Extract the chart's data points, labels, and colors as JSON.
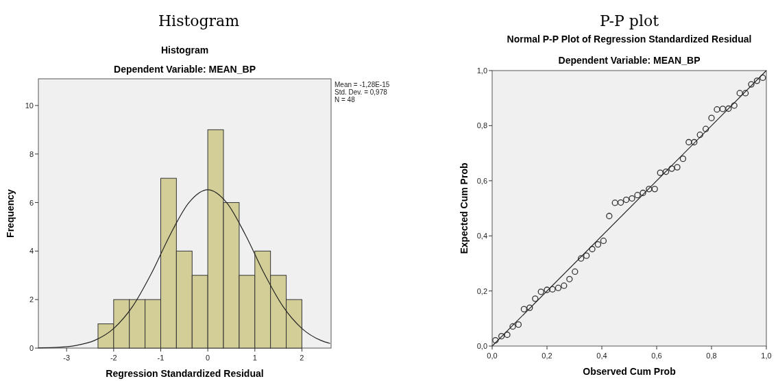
{
  "chart_data": [
    {
      "type": "histogram",
      "title": "Histogram",
      "subtitle": "Dependent Variable: MEAN_BP",
      "xlabel": "Regression Standardized Residual",
      "ylabel": "Frequency",
      "annotations": [
        "Histogram",
        "Mean = -1,28E-15",
        "Std. Dev. = 0,978",
        "N = 48"
      ],
      "bins": [
        -2.333,
        -2,
        -1.667,
        -1.333,
        -1,
        -0.667,
        -0.333,
        0,
        0.333,
        0.667,
        1,
        1.333,
        1.667,
        2
      ],
      "values": [
        1,
        2,
        2,
        2,
        7,
        4,
        3,
        9,
        6,
        3,
        4,
        3,
        2
      ],
      "color": "#d3ce97",
      "series": [
        {
          "type": "line",
          "color": "#222222",
          "x": [
            -3.6,
            -3.2,
            -2.8,
            -2.4,
            -2,
            -1.6,
            -1.2,
            -0.8,
            -0.4,
            0,
            0.4,
            0.8,
            1.2,
            1.6,
            2,
            2.4,
            2.6
          ],
          "values": [
            0.01,
            0.03,
            0.11,
            0.32,
            0.81,
            1.71,
            3.07,
            4.67,
            6,
            6.53,
            6,
            4.67,
            3.07,
            1.71,
            0.81,
            0.32,
            0.19
          ]
        }
      ],
      "xlim": [
        -3.6,
        2.62
      ],
      "ylim": [
        0,
        11.1
      ],
      "xticks": [
        -3,
        -2,
        -1,
        0,
        1,
        2
      ],
      "yticks": [
        0,
        2,
        4,
        6,
        8,
        10
      ],
      "grid": false
    },
    {
      "type": "scatter",
      "title": "Normal P-P Plot of Regression Standardized Residual",
      "subtitle": "Dependent Variable: MEAN_BP",
      "xlabel": "Observed Cum Prob",
      "ylabel": "Expected Cum Prob",
      "annotations": [
        "P-P plot"
      ],
      "marker": "circle",
      "grid": false,
      "series": [
        {
          "type": "scatter",
          "color": "#333333",
          "x": [
            0.012,
            0.034,
            0.055,
            0.075,
            0.096,
            0.116,
            0.137,
            0.157,
            0.178,
            0.2,
            0.22,
            0.241,
            0.262,
            0.282,
            0.302,
            0.324,
            0.344,
            0.365,
            0.386,
            0.406,
            0.427,
            0.448,
            0.469,
            0.489,
            0.51,
            0.53,
            0.55,
            0.572,
            0.593,
            0.613,
            0.634,
            0.655,
            0.675,
            0.696,
            0.717,
            0.737,
            0.758,
            0.779,
            0.8,
            0.82,
            0.841,
            0.862,
            0.883,
            0.903,
            0.924,
            0.945,
            0.966,
            0.987
          ],
          "values": [
            0.021,
            0.036,
            0.041,
            0.071,
            0.078,
            0.134,
            0.139,
            0.172,
            0.197,
            0.204,
            0.206,
            0.211,
            0.219,
            0.243,
            0.27,
            0.318,
            0.328,
            0.352,
            0.369,
            0.382,
            0.472,
            0.52,
            0.521,
            0.531,
            0.536,
            0.548,
            0.556,
            0.57,
            0.57,
            0.629,
            0.633,
            0.644,
            0.649,
            0.68,
            0.74,
            0.74,
            0.767,
            0.788,
            0.828,
            0.859,
            0.861,
            0.862,
            0.873,
            0.918,
            0.918,
            0.95,
            0.963,
            0.974
          ]
        },
        {
          "type": "line",
          "marker": "none",
          "color": "#222222",
          "x": [
            0,
            1
          ],
          "values": [
            0,
            1
          ]
        }
      ],
      "xlim": [
        0,
        1
      ],
      "ylim": [
        0,
        1
      ],
      "xticks": [
        {
          "value": 0,
          "label": "0,0"
        },
        {
          "value": 0.2,
          "label": "0,2"
        },
        {
          "value": 0.4,
          "label": "0,4"
        },
        {
          "value": 0.6,
          "label": "0,6"
        },
        {
          "value": 0.8,
          "label": "0,8"
        },
        {
          "value": 1,
          "label": "1,0"
        }
      ],
      "yticks": [
        {
          "value": 0,
          "label": "0,0"
        },
        {
          "value": 0.2,
          "label": "0,2"
        },
        {
          "value": 0.4,
          "label": "0,4"
        },
        {
          "value": 0.6,
          "label": "0,6"
        },
        {
          "value": 0.8,
          "label": "0,8"
        },
        {
          "value": 1,
          "label": "1,0"
        }
      ]
    }
  ]
}
